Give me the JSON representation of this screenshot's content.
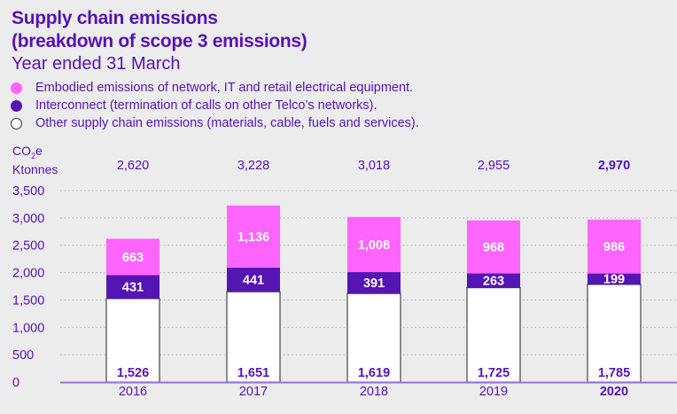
{
  "header": {
    "title_line1": "Supply chain emissions",
    "title_line2": "(breakdown of scope 3 emissions)",
    "subtitle": "Year ended 31 March"
  },
  "legend": [
    {
      "label": "Embodied emissions of network, IT and retail electrical equipment.",
      "color": "#ff64ff",
      "border": "#ff64ff"
    },
    {
      "label": "Interconnect (termination of calls on other Telco’s networks).",
      "color": "#5514b4",
      "border": "#5514b4"
    },
    {
      "label": "Other supply chain emissions (materials, cable, fuels and services).",
      "color": "#ffffff",
      "border": "#333333"
    }
  ],
  "unit": {
    "line1_prefix": "CO",
    "line1_sub": "2",
    "line1_suffix": "e",
    "line2": "Ktonnes"
  },
  "chart_data": {
    "type": "bar",
    "stacked": true,
    "title": "Supply chain emissions (breakdown of scope 3 emissions)",
    "subtitle": "Year ended 31 March",
    "ylabel": "CO2e Ktonnes",
    "xlabel": "",
    "ylim": [
      0,
      3500
    ],
    "yticks": [
      0,
      500,
      1000,
      1500,
      2000,
      2500,
      3000,
      3500
    ],
    "ytick_labels": [
      "0",
      "500",
      "1,000",
      "1,500",
      "2,000",
      "2,500",
      "3,000",
      "3,500"
    ],
    "grid": true,
    "legend_position": "top-left",
    "categories": [
      "2016",
      "2017",
      "2018",
      "2019",
      "2020"
    ],
    "highlight_category": "2020",
    "totals": [
      2620,
      3228,
      3018,
      2955,
      2970
    ],
    "total_labels": [
      "2,620",
      "3,228",
      "3,018",
      "2,955",
      "2,970"
    ],
    "series": [
      {
        "name": "Other supply chain emissions (materials, cable, fuels and services)",
        "color": "#ffffff",
        "label_color": "#5514b4",
        "values": [
          1526,
          1651,
          1619,
          1725,
          1785
        ],
        "labels": [
          "1,526",
          "1,651",
          "1,619",
          "1,725",
          "1,785"
        ]
      },
      {
        "name": "Interconnect (termination of calls on other Telco's networks)",
        "color": "#5514b4",
        "label_color": "#ffffff",
        "values": [
          431,
          441,
          391,
          263,
          199
        ],
        "labels": [
          "431",
          "441",
          "391",
          "263",
          "199"
        ]
      },
      {
        "name": "Embodied emissions of network, IT and retail electrical equipment",
        "color": "#ff64ff",
        "label_color": "#ffffff",
        "values": [
          663,
          1136,
          1008,
          968,
          986
        ],
        "labels": [
          "663",
          "1,136",
          "1,008",
          "968",
          "986"
        ]
      }
    ]
  }
}
